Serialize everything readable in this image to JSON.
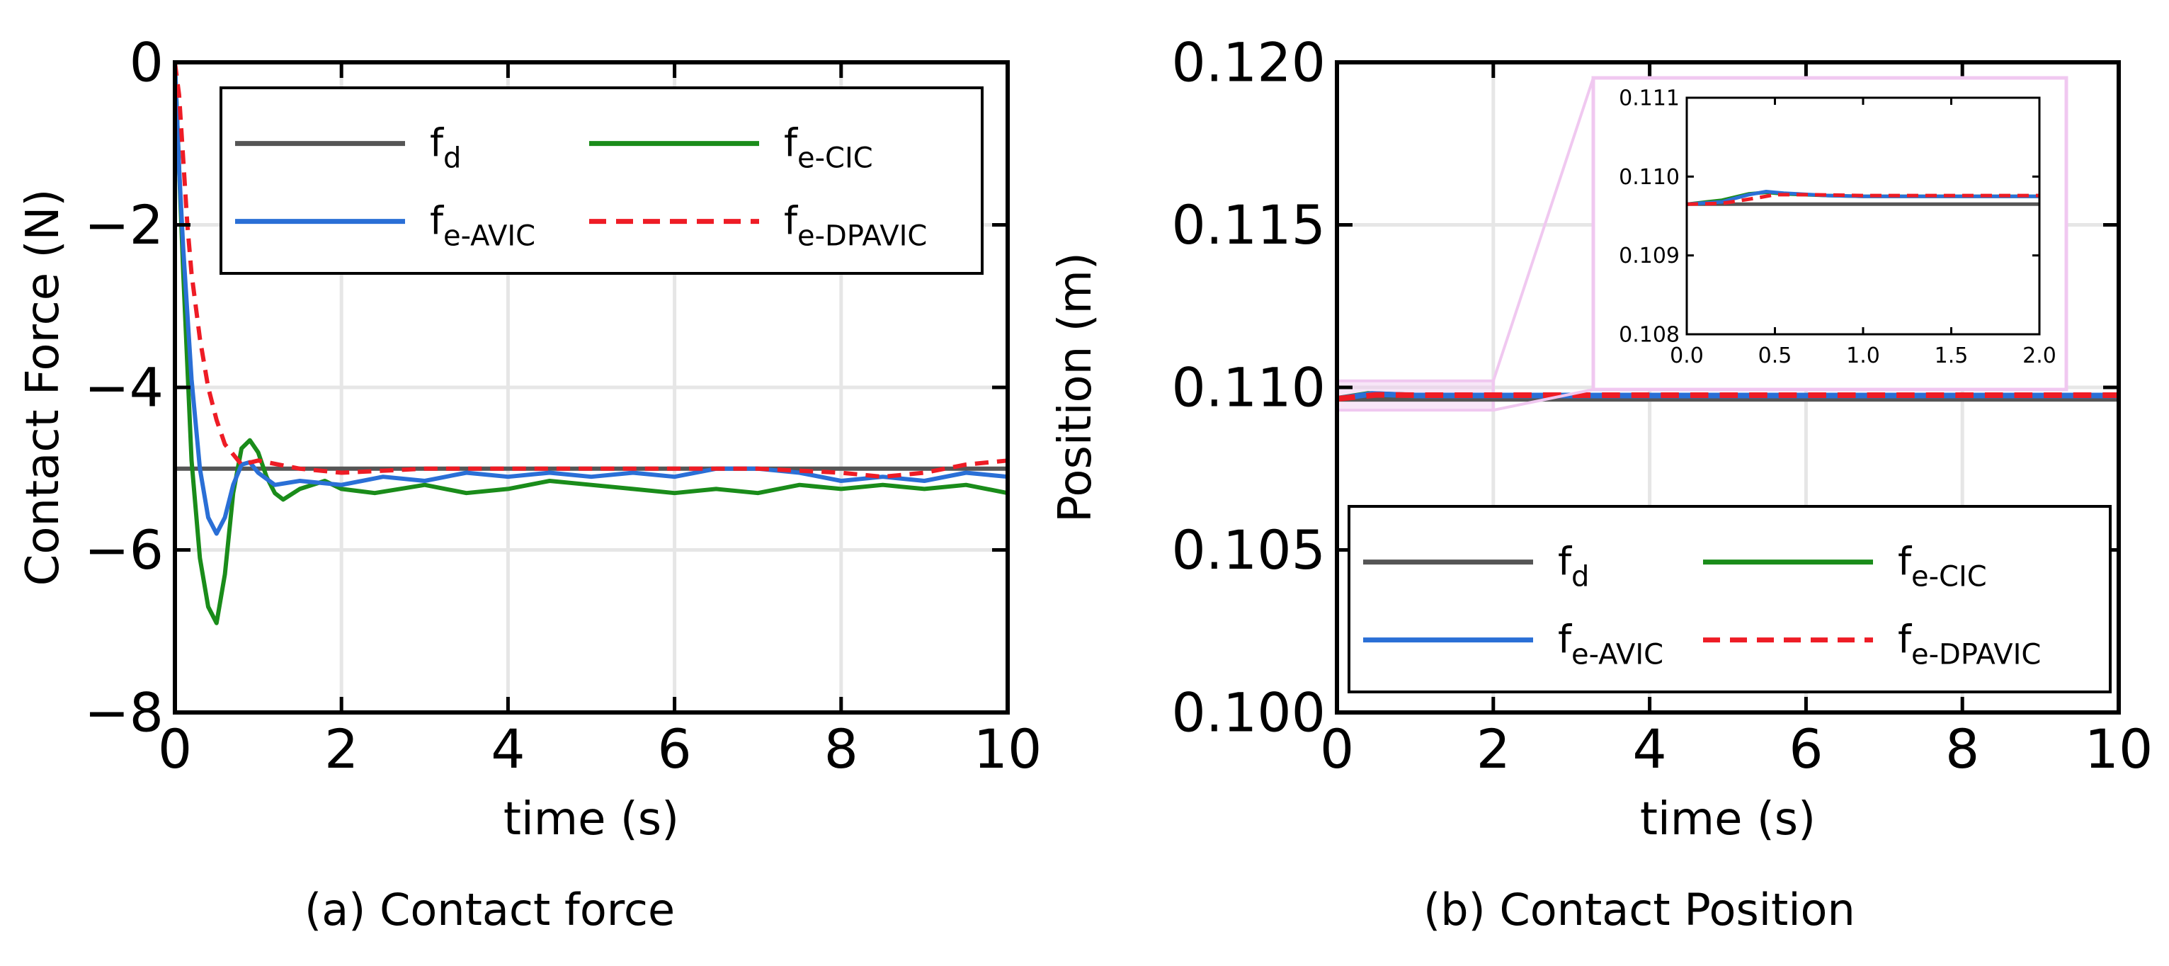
{
  "colors": {
    "fd": "#555555",
    "cic": "#1a8c1a",
    "avic": "#2a6fd6",
    "dpavic": "#ee1c25",
    "grid": "#e6e6e6",
    "inset_box": "#f0c8f0"
  },
  "legend": [
    {
      "key": "fd",
      "base": "f",
      "sub": "d",
      "style": "solid"
    },
    {
      "key": "cic",
      "base": "f",
      "sub": "e-CIC",
      "style": "solid"
    },
    {
      "key": "avic",
      "base": "f",
      "sub": "e-AVIC",
      "style": "solid"
    },
    {
      "key": "dpavic",
      "base": "f",
      "sub": "e-DPAVIC",
      "style": "dashed"
    }
  ],
  "chart_data": [
    {
      "type": "line",
      "title": "",
      "caption": "(a) Contact force",
      "xlabel": "time (s)",
      "ylabel": "Contact Force (N)",
      "xlim": [
        0,
        10
      ],
      "ylim": [
        -8,
        0
      ],
      "xticks": [
        0,
        2,
        4,
        6,
        8,
        10
      ],
      "xtick_labels": [
        "0",
        "2",
        "4",
        "6",
        "8",
        "10"
      ],
      "yticks": [
        0,
        -2,
        -4,
        -6,
        -8
      ],
      "ytick_labels": [
        "0",
        "−2",
        "−4",
        "−6",
        "−8"
      ],
      "grid": true,
      "legend_position": "top-right",
      "series": [
        {
          "name": "fd",
          "x": [
            0,
            10
          ],
          "y": [
            -5.0,
            -5.0
          ]
        },
        {
          "name": "e-CIC",
          "x": [
            0,
            0.1,
            0.2,
            0.3,
            0.4,
            0.5,
            0.6,
            0.7,
            0.8,
            0.9,
            1.0,
            1.1,
            1.2,
            1.3,
            1.5,
            1.8,
            2.0,
            2.4,
            3.0,
            3.5,
            4.0,
            4.5,
            5.0,
            5.5,
            6.0,
            6.5,
            7.0,
            7.5,
            8.0,
            8.5,
            9.0,
            9.5,
            10.0
          ],
          "y": [
            0.0,
            -2.6,
            -4.9,
            -6.1,
            -6.7,
            -6.9,
            -6.3,
            -5.3,
            -4.75,
            -4.65,
            -4.8,
            -5.1,
            -5.3,
            -5.38,
            -5.25,
            -5.15,
            -5.25,
            -5.3,
            -5.2,
            -5.3,
            -5.25,
            -5.15,
            -5.2,
            -5.25,
            -5.3,
            -5.25,
            -5.3,
            -5.2,
            -5.25,
            -5.2,
            -5.25,
            -5.2,
            -5.3
          ]
        },
        {
          "name": "e-AVIC",
          "x": [
            0,
            0.05,
            0.1,
            0.2,
            0.3,
            0.4,
            0.5,
            0.6,
            0.7,
            0.8,
            0.9,
            1.0,
            1.2,
            1.5,
            2.0,
            2.5,
            3.0,
            3.5,
            4.0,
            4.5,
            5.0,
            5.5,
            6.0,
            6.5,
            7.0,
            7.5,
            8.0,
            8.5,
            9.0,
            9.5,
            10.0
          ],
          "y": [
            0.0,
            -1.3,
            -2.3,
            -3.9,
            -5.0,
            -5.6,
            -5.8,
            -5.6,
            -5.2,
            -4.95,
            -4.92,
            -5.05,
            -5.2,
            -5.15,
            -5.2,
            -5.1,
            -5.15,
            -5.05,
            -5.1,
            -5.05,
            -5.1,
            -5.05,
            -5.1,
            -5.0,
            -5.0,
            -5.05,
            -5.15,
            -5.1,
            -5.15,
            -5.05,
            -5.1
          ]
        },
        {
          "name": "e-DPAVIC",
          "x": [
            0,
            0.05,
            0.1,
            0.15,
            0.2,
            0.3,
            0.4,
            0.5,
            0.6,
            0.8,
            1.0,
            1.5,
            2.0,
            3.0,
            4.0,
            5.0,
            6.0,
            7.0,
            8.0,
            8.5,
            9.0,
            9.5,
            10.0
          ],
          "y": [
            0.0,
            -0.4,
            -1.2,
            -2.0,
            -2.6,
            -3.4,
            -4.0,
            -4.4,
            -4.7,
            -4.95,
            -4.9,
            -5.0,
            -5.05,
            -5.0,
            -5.0,
            -5.0,
            -5.0,
            -5.0,
            -5.05,
            -5.1,
            -5.05,
            -4.95,
            -4.9
          ]
        }
      ]
    },
    {
      "type": "line",
      "title": "",
      "caption": "(b) Contact Position",
      "xlabel": "time (s)",
      "ylabel": "Position (m)",
      "xlim": [
        0,
        10
      ],
      "ylim": [
        0.1,
        0.12
      ],
      "xticks": [
        0,
        2,
        4,
        6,
        8,
        10
      ],
      "xtick_labels": [
        "0",
        "2",
        "4",
        "6",
        "8",
        "10"
      ],
      "yticks": [
        0.12,
        0.115,
        0.11,
        0.105,
        0.1
      ],
      "ytick_labels": [
        "0.120",
        "0.115",
        "0.110",
        "0.105",
        "0.100"
      ],
      "grid": true,
      "legend_position": "bottom",
      "series": [
        {
          "name": "fd",
          "x": [
            0,
            10
          ],
          "y": [
            0.10965,
            0.10965
          ]
        },
        {
          "name": "e-CIC",
          "x": [
            0,
            0.4,
            1.0,
            2.0,
            10.0
          ],
          "y": [
            0.10965,
            0.1098,
            0.10975,
            0.10975,
            0.10975
          ]
        },
        {
          "name": "e-AVIC",
          "x": [
            0,
            0.45,
            1.0,
            2.0,
            10.0
          ],
          "y": [
            0.10965,
            0.1098,
            0.10975,
            0.10975,
            0.10975
          ]
        },
        {
          "name": "e-DPAVIC",
          "x": [
            0,
            0.5,
            1.0,
            2.0,
            10.0
          ],
          "y": [
            0.10965,
            0.10977,
            0.10976,
            0.10976,
            0.10976
          ]
        }
      ],
      "inset": {
        "xlim": [
          0.0,
          2.0
        ],
        "ylim": [
          0.108,
          0.111
        ],
        "xticks": [
          0.0,
          0.5,
          1.0,
          1.5,
          2.0
        ],
        "xtick_labels": [
          "0.0",
          "0.5",
          "1.0",
          "1.5",
          "2.0"
        ],
        "yticks": [
          0.111,
          0.11,
          0.109,
          0.108
        ],
        "ytick_labels": [
          "0.111",
          "0.110",
          "0.109",
          "0.108"
        ],
        "zoom_region": {
          "x": [
            0,
            2
          ],
          "y": [
            0.1093,
            0.1102
          ]
        },
        "series": [
          {
            "name": "fd",
            "x": [
              0,
              2.0
            ],
            "y": [
              0.10965,
              0.10965
            ]
          },
          {
            "name": "e-CIC",
            "x": [
              0,
              0.2,
              0.35,
              0.45,
              0.55,
              0.8,
              1.0,
              1.5,
              2.0
            ],
            "y": [
              0.10965,
              0.1097,
              0.10978,
              0.1098,
              0.10978,
              0.10976,
              0.10975,
              0.10975,
              0.10975
            ]
          },
          {
            "name": "e-AVIC",
            "x": [
              0,
              0.2,
              0.35,
              0.45,
              0.55,
              0.8,
              1.0,
              1.5,
              2.0
            ],
            "y": [
              0.10965,
              0.10968,
              0.10977,
              0.10981,
              0.10979,
              0.10976,
              0.10975,
              0.10975,
              0.10975
            ]
          },
          {
            "name": "e-DPAVIC",
            "x": [
              0,
              0.2,
              0.4,
              0.5,
              0.7,
              1.0,
              1.5,
              2.0
            ],
            "y": [
              0.10965,
              0.10966,
              0.10973,
              0.10977,
              0.10977,
              0.10976,
              0.10976,
              0.10976
            ]
          }
        ]
      }
    }
  ]
}
